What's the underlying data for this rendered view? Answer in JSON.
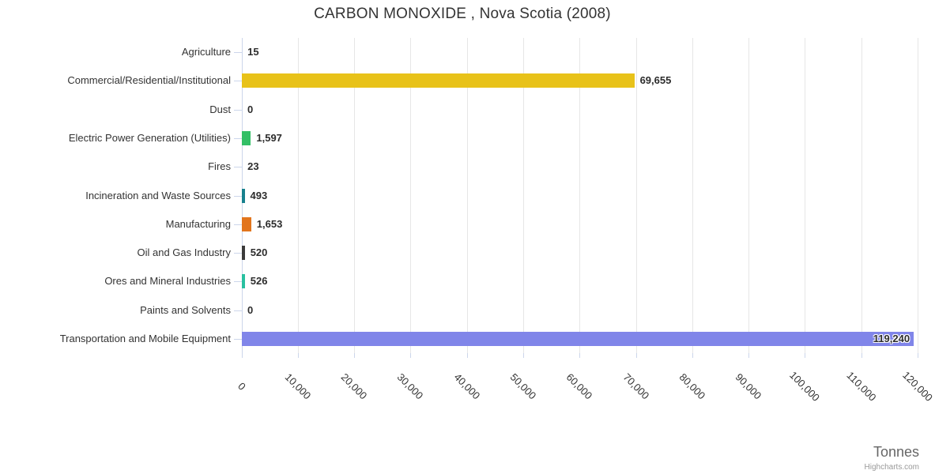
{
  "chart_data": {
    "type": "bar",
    "title": "CARBON MONOXIDE , Nova Scotia (2008)",
    "categories": [
      "Agriculture",
      "Commercial/Residential/Institutional",
      "Dust",
      "Electric Power Generation (Utilities)",
      "Fires",
      "Incineration and Waste Sources",
      "Manufacturing",
      "Oil and Gas Industry",
      "Ores and Mineral Industries",
      "Paints and Solvents",
      "Transportation and Mobile Equipment"
    ],
    "values": [
      15,
      69655,
      0,
      1597,
      23,
      493,
      1653,
      520,
      526,
      0,
      119240
    ],
    "value_labels": [
      "15",
      "69,655",
      "0",
      "1,597",
      "23",
      "493",
      "1,653",
      "520",
      "526",
      "0",
      "119,240"
    ],
    "bar_colors": [
      "#999999",
      "#e8c219",
      "#999999",
      "#33bf66",
      "#999999",
      "#17808d",
      "#e2751d",
      "#3b3b3b",
      "#29c0a0",
      "#999999",
      "#8085e9"
    ],
    "xlabel": "Tonnes",
    "ylabel": "",
    "xlim": [
      0,
      120000
    ],
    "x_tick_labels": [
      "0",
      "10,000",
      "20,000",
      "30,000",
      "40,000",
      "50,000",
      "60,000",
      "70,000",
      "80,000",
      "90,000",
      "100,000",
      "110,000",
      "120,000"
    ],
    "x_tick_step": 10000,
    "grid": true,
    "legend": "none",
    "orientation": "horizontal",
    "credit": "Highcharts.com"
  },
  "colors": {
    "grid": "#e6e6e6",
    "axis": "#ccd6eb",
    "title_text": "#333333",
    "category_text": "#333333",
    "value_text": "#2c2c2c",
    "axis_title_text": "#666666",
    "credit_text": "#999999"
  }
}
